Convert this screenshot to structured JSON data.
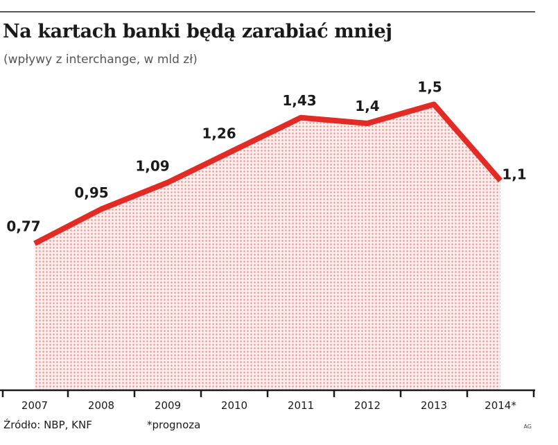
{
  "title": "Na kartach banki będą zarabiać mniej",
  "subtitle": "(wpływy z interchange, w mld zł)",
  "footer": {
    "source": "Źródło: NBP, KNF",
    "note": "*prognoza",
    "credit": "AG"
  },
  "colors": {
    "line": "#e32b25",
    "fill_dot": "#f08a8a",
    "axis": "#1a1a1a"
  },
  "chart_data": {
    "type": "area",
    "categories": [
      "2007",
      "2008",
      "2009",
      "2010",
      "2011",
      "2012",
      "2013",
      "2014*"
    ],
    "values": [
      0.77,
      0.95,
      1.09,
      1.26,
      1.43,
      1.4,
      1.5,
      1.1
    ],
    "labels": [
      "0,77",
      "0,95",
      "1,09",
      "1,26",
      "1,43",
      "1,4",
      "1,5",
      "1,1"
    ],
    "ylim": [
      0,
      1.6
    ],
    "grid": false,
    "legend": "none"
  }
}
